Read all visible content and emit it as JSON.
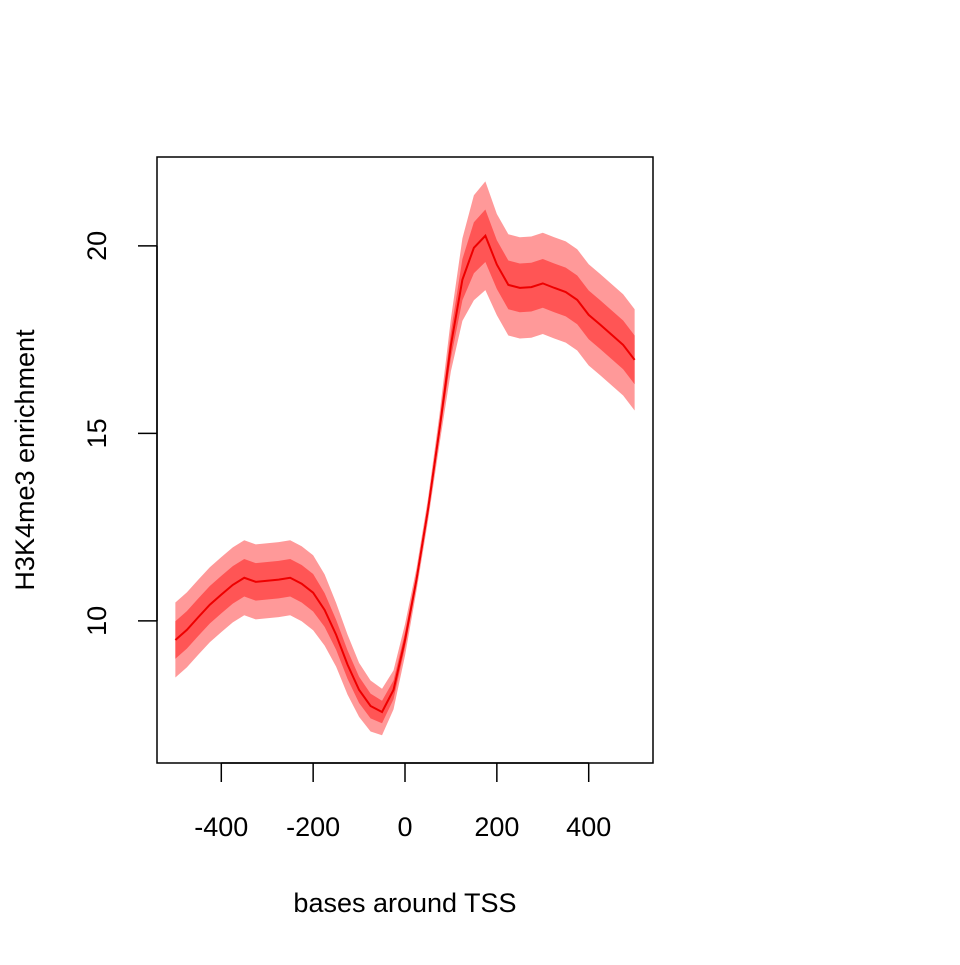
{
  "chart_data": {
    "type": "line",
    "xlabel": "bases around TSS",
    "ylabel": "H3K4me3 enrichment",
    "xlim": [
      -540,
      540
    ],
    "ylim": [
      6.21,
      22.37
    ],
    "xticks": [
      -400,
      -200,
      0,
      200,
      400
    ],
    "yticks": [
      10,
      15,
      20
    ],
    "x": [
      -500,
      -475,
      -450,
      -425,
      -400,
      -375,
      -350,
      -325,
      -300,
      -275,
      -250,
      -225,
      -200,
      -175,
      -150,
      -125,
      -100,
      -75,
      -50,
      -25,
      0,
      25,
      50,
      75,
      100,
      125,
      150,
      175,
      200,
      225,
      250,
      275,
      300,
      325,
      350,
      375,
      400,
      425,
      450,
      475,
      500
    ],
    "bands": [
      {
        "color": "#ff9999",
        "lower": [
          8.49,
          8.76,
          9.1,
          9.43,
          9.7,
          9.96,
          10.15,
          10.04,
          10.07,
          10.1,
          10.15,
          9.99,
          9.75,
          9.34,
          8.78,
          8.03,
          7.44,
          7.05,
          6.95,
          7.64,
          9.07,
          10.8,
          12.66,
          14.7,
          16.66,
          18.0,
          18.55,
          18.82,
          18.15,
          17.61,
          17.53,
          17.55,
          17.65,
          17.53,
          17.42,
          17.21,
          16.81,
          16.55,
          16.28,
          16.01,
          15.61
        ],
        "upper": [
          10.49,
          10.76,
          11.1,
          11.43,
          11.7,
          11.96,
          12.15,
          12.04,
          12.07,
          12.1,
          12.15,
          11.99,
          11.75,
          11.24,
          10.48,
          9.63,
          8.88,
          8.41,
          8.19,
          8.68,
          9.91,
          11.4,
          13.26,
          15.5,
          18.06,
          20.2,
          21.35,
          21.72,
          20.85,
          20.31,
          20.23,
          20.25,
          20.35,
          20.23,
          20.12,
          19.91,
          19.51,
          19.25,
          18.98,
          18.71,
          18.31
        ]
      },
      {
        "color": "#ff5555",
        "lower": [
          8.99,
          9.26,
          9.6,
          9.93,
          10.2,
          10.46,
          10.65,
          10.54,
          10.57,
          10.6,
          10.65,
          10.49,
          10.25,
          9.84,
          9.23,
          8.45,
          7.81,
          7.4,
          7.27,
          7.91,
          9.29,
          10.95,
          12.81,
          14.9,
          17.01,
          18.55,
          19.27,
          19.57,
          18.85,
          18.31,
          18.23,
          18.25,
          18.35,
          18.23,
          18.12,
          17.91,
          17.51,
          17.25,
          16.98,
          16.71,
          16.31
        ],
        "upper": [
          9.99,
          10.26,
          10.6,
          10.93,
          11.2,
          11.46,
          11.65,
          11.54,
          11.57,
          11.6,
          11.65,
          11.49,
          11.25,
          10.74,
          10.03,
          9.21,
          8.51,
          8.06,
          7.87,
          8.41,
          9.69,
          11.25,
          13.11,
          15.3,
          17.71,
          19.65,
          20.63,
          20.97,
          20.15,
          19.61,
          19.53,
          19.55,
          19.65,
          19.53,
          19.42,
          19.21,
          18.81,
          18.55,
          18.28,
          18.01,
          17.61
        ]
      }
    ],
    "series": [
      {
        "color": "#ee0000",
        "values": [
          9.49,
          9.76,
          10.1,
          10.43,
          10.7,
          10.96,
          11.15,
          11.04,
          11.07,
          11.1,
          11.15,
          10.99,
          10.75,
          10.29,
          9.63,
          8.83,
          8.16,
          7.73,
          7.57,
          8.16,
          9.49,
          11.1,
          12.96,
          15.1,
          17.36,
          19.1,
          19.95,
          20.27,
          19.5,
          18.96,
          18.88,
          18.9,
          19.0,
          18.88,
          18.77,
          18.56,
          18.16,
          17.9,
          17.63,
          17.36,
          16.96
        ]
      }
    ]
  }
}
